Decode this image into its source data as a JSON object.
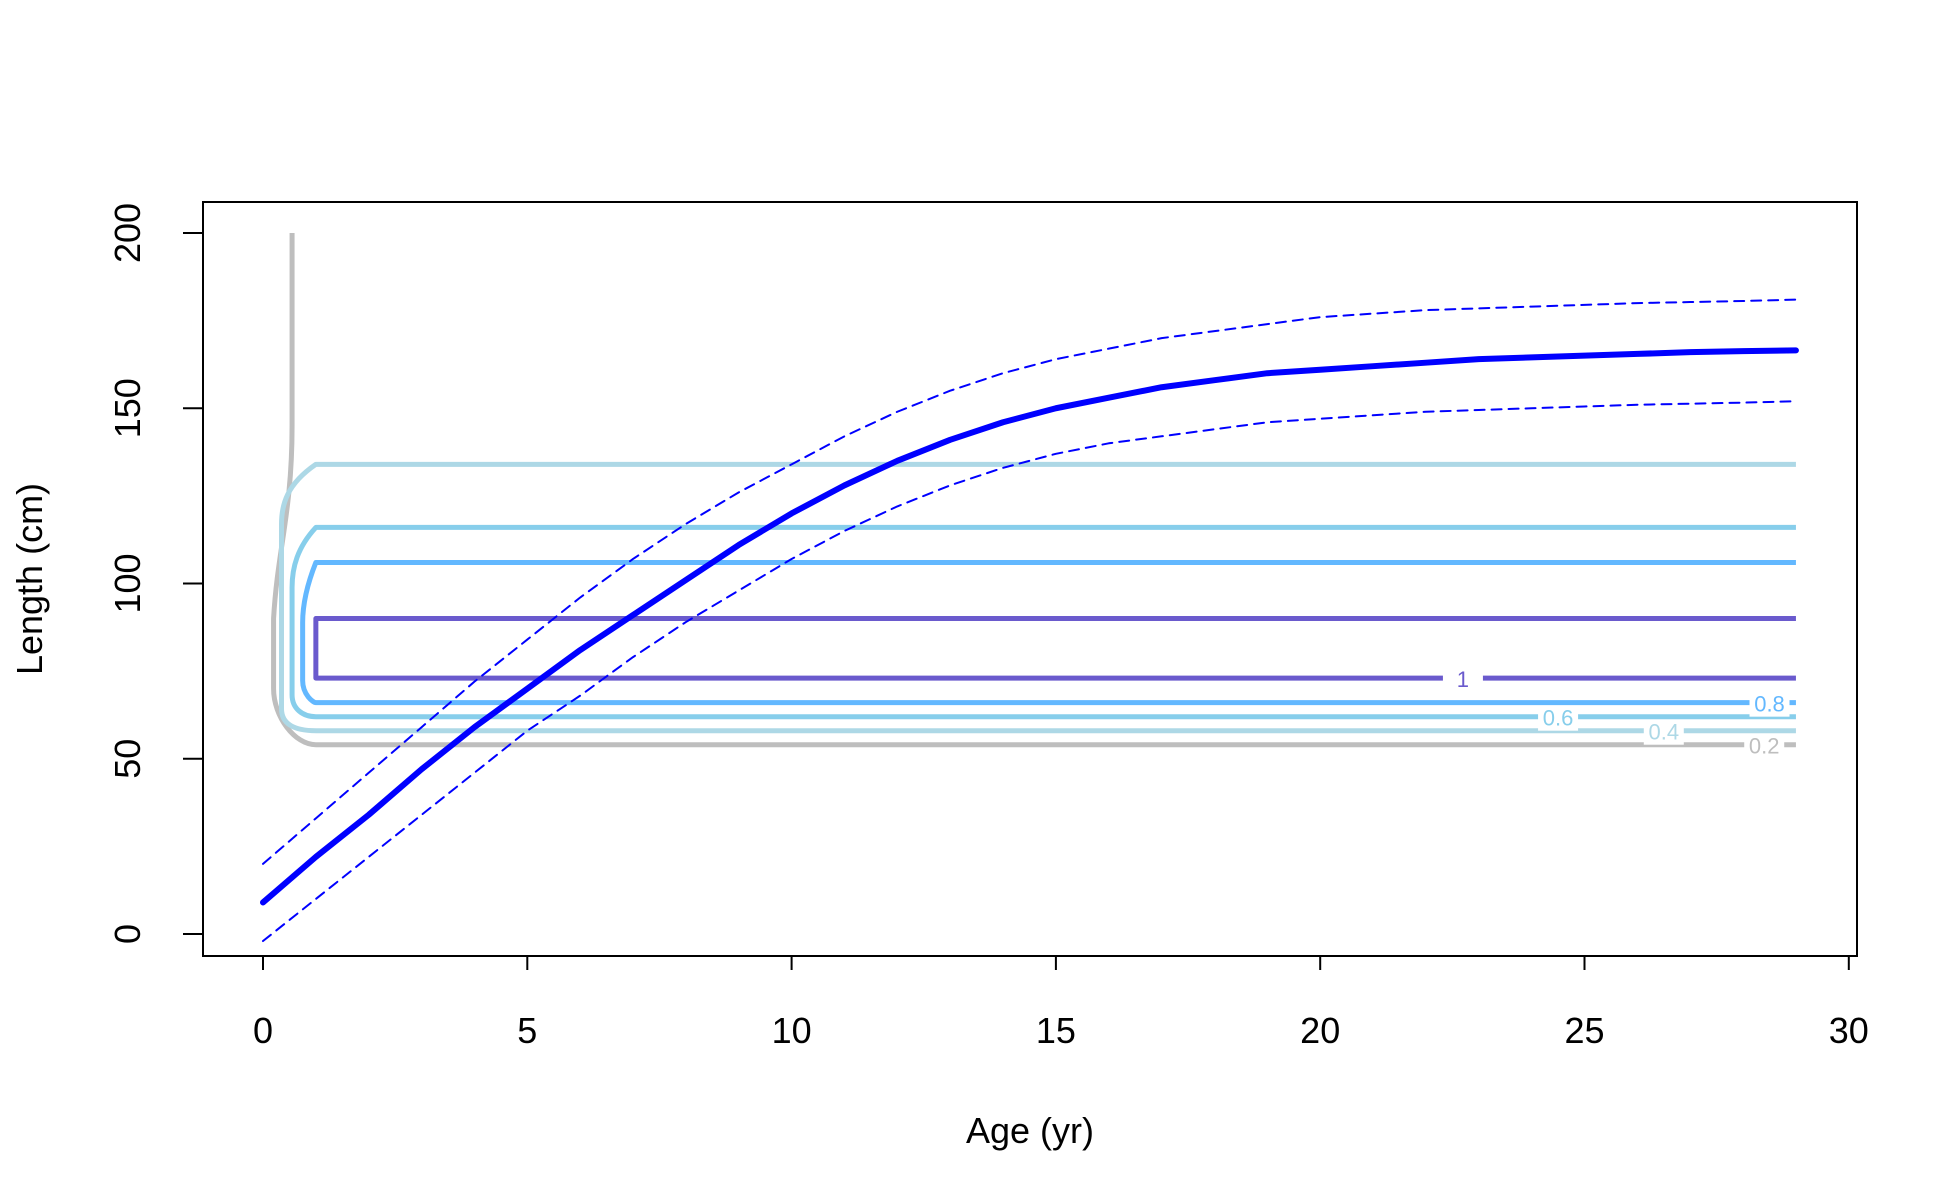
{
  "chart_data": {
    "type": "line",
    "title": "",
    "xlabel": "Age (yr)",
    "ylabel": "Length (cm)",
    "xlim": [
      0,
      29
    ],
    "ylim": [
      0,
      200
    ],
    "xticks": [
      "0",
      "5",
      "10",
      "15",
      "20",
      "25",
      "30"
    ],
    "yticks": [
      "0",
      "50",
      "100",
      "150",
      "200"
    ],
    "grid": false,
    "series": [
      {
        "role": "mean",
        "color": "#0000ff",
        "x": [
          0,
          1,
          2,
          3,
          4,
          5,
          6,
          7,
          8,
          9,
          10,
          11,
          12,
          13,
          14,
          15,
          16,
          17,
          18,
          19,
          20,
          21,
          22,
          23,
          24,
          25,
          26,
          27,
          28,
          29
        ],
        "y": [
          9,
          22,
          34,
          47,
          59,
          70,
          81,
          91,
          101,
          111,
          120,
          128,
          135,
          141,
          146,
          150,
          153,
          156,
          158,
          160,
          161,
          162,
          163,
          164,
          164.5,
          165,
          165.5,
          166,
          166.3,
          166.5
        ]
      },
      {
        "role": "upper",
        "color": "#0000ff",
        "x": [
          0,
          1,
          2,
          3,
          4,
          5,
          6,
          7,
          8,
          9,
          10,
          11,
          12,
          13,
          14,
          15,
          16,
          17,
          18,
          19,
          20,
          21,
          22,
          23,
          24,
          25,
          26,
          27,
          28,
          29
        ],
        "y": [
          20,
          33,
          46,
          59,
          72,
          84,
          96,
          107,
          117,
          126,
          134,
          142,
          149,
          155,
          160,
          164,
          167,
          170,
          172,
          174,
          176,
          177,
          178,
          178.5,
          179,
          179.5,
          180,
          180.3,
          180.6,
          181
        ]
      },
      {
        "role": "lower",
        "color": "#0000ff",
        "x": [
          0,
          1,
          2,
          3,
          4,
          5,
          6,
          7,
          8,
          9,
          10,
          11,
          12,
          13,
          14,
          15,
          16,
          17,
          18,
          19,
          20,
          21,
          22,
          23,
          24,
          25,
          26,
          27,
          28,
          29
        ],
        "y": [
          -2,
          10,
          22,
          34,
          46,
          58,
          68,
          79,
          89,
          98,
          107,
          115,
          122,
          128,
          133,
          137,
          140,
          142,
          144,
          146,
          147,
          148,
          149,
          149.5,
          150,
          150.5,
          151,
          151.3,
          151.6,
          152
        ]
      }
    ],
    "contours": [
      {
        "level": "0.2",
        "color": "#bebebe",
        "lower": 54,
        "upper": 200,
        "label_x": 28.4
      },
      {
        "level": "0.4",
        "color": "#add8e6",
        "lower": 58,
        "upper": 134,
        "label_x": 26.5
      },
      {
        "level": "0.6",
        "color": "#87ceeb",
        "lower": 62,
        "upper": 116,
        "label_x": 24.5
      },
      {
        "level": "0.8",
        "color": "#63b8ff",
        "lower": 66,
        "upper": 106,
        "label_x": 28.5
      },
      {
        "level": "1",
        "color": "#6a5acd",
        "lower": 73,
        "upper": 90,
        "label_x": 22.7
      }
    ]
  }
}
